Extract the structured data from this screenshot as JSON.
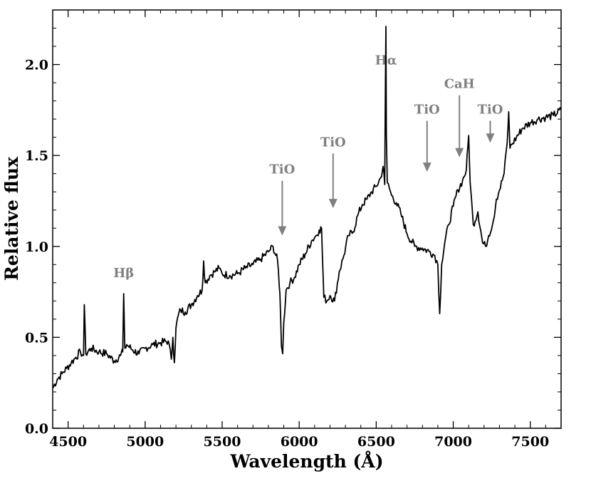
{
  "chart_data": {
    "type": "line",
    "xlabel": "Wavelength (Å)",
    "ylabel": "Relative flux",
    "xlim": [
      4400,
      7700
    ],
    "ylim": [
      0.0,
      2.3
    ],
    "xticks": [
      4500,
      5000,
      5500,
      6000,
      6500,
      7000,
      7500
    ],
    "xtick_labels": [
      "4500",
      "5000",
      "5500",
      "6000",
      "6500",
      "7000",
      "7500"
    ],
    "yticks": [
      0.0,
      0.5,
      1.0,
      1.5,
      2.0
    ],
    "ytick_labels": [
      "0.0",
      "0.5",
      "1.0",
      "1.5",
      "2.0"
    ],
    "grid": false,
    "annotation_color": "#808080",
    "line_color": "#000000",
    "annotations": [
      {
        "label": "Hβ",
        "x": 4861,
        "y": 0.83,
        "arrow": false
      },
      {
        "label": "TiO",
        "x": 5890,
        "y": 1.4,
        "arrow": true,
        "y_tip": 1.06
      },
      {
        "label": "TiO",
        "x": 6220,
        "y": 1.55,
        "arrow": true,
        "y_tip": 1.21
      },
      {
        "label": "Hα",
        "x": 6563,
        "y": 2.0,
        "arrow": false
      },
      {
        "label": "TiO",
        "x": 6830,
        "y": 1.73,
        "arrow": true,
        "y_tip": 1.41
      },
      {
        "label": "CaH",
        "x": 7040,
        "y": 1.87,
        "arrow": true,
        "y_tip": 1.49
      },
      {
        "label": "TiO",
        "x": 7240,
        "y": 1.73,
        "arrow": true,
        "y_tip": 1.57
      }
    ],
    "series": [
      {
        "x": [
          4400,
          4430,
          4460,
          4490,
          4520,
          4550,
          4580,
          4600,
          4605,
          4615,
          4650,
          4700,
          4750,
          4800,
          4840,
          4855,
          4861,
          4868,
          4880,
          4920,
          4960,
          5000,
          5050,
          5100,
          5150,
          5170,
          5180,
          5190,
          5200,
          5215,
          5230,
          5260,
          5300,
          5340,
          5370,
          5380,
          5390,
          5420,
          5450,
          5480,
          5500,
          5550,
          5600,
          5650,
          5700,
          5750,
          5800,
          5830,
          5860,
          5875,
          5885,
          5893,
          5900,
          5915,
          5940,
          5970,
          6000,
          6040,
          6080,
          6110,
          6130,
          6145,
          6160,
          6180,
          6200,
          6230,
          6260,
          6290,
          6320,
          6350,
          6380,
          6410,
          6440,
          6470,
          6500,
          6530,
          6545,
          6555,
          6560,
          6563,
          6566,
          6572,
          6585,
          6600,
          6630,
          6660,
          6700,
          6750,
          6800,
          6850,
          6880,
          6900,
          6912,
          6925,
          6945,
          6970,
          7000,
          7030,
          7060,
          7085,
          7100,
          7110,
          7130,
          7160,
          7190,
          7210,
          7230,
          7260,
          7280,
          7300,
          7330,
          7350,
          7360,
          7368,
          7380,
          7410,
          7450,
          7500,
          7550,
          7600,
          7650,
          7700
        ],
        "y": [
          0.22,
          0.27,
          0.3,
          0.33,
          0.36,
          0.39,
          0.42,
          0.4,
          0.68,
          0.41,
          0.44,
          0.42,
          0.41,
          0.37,
          0.4,
          0.42,
          0.74,
          0.44,
          0.46,
          0.43,
          0.41,
          0.44,
          0.46,
          0.47,
          0.48,
          0.38,
          0.5,
          0.36,
          0.55,
          0.62,
          0.65,
          0.64,
          0.68,
          0.73,
          0.76,
          0.92,
          0.8,
          0.84,
          0.86,
          0.88,
          0.85,
          0.84,
          0.85,
          0.88,
          0.9,
          0.93,
          0.97,
          1.0,
          0.92,
          0.74,
          0.45,
          0.41,
          0.58,
          0.76,
          0.8,
          0.83,
          0.9,
          0.96,
          1.03,
          1.06,
          1.09,
          1.1,
          0.72,
          0.7,
          0.73,
          0.7,
          0.86,
          0.95,
          1.06,
          1.08,
          1.17,
          1.23,
          1.26,
          1.3,
          1.33,
          1.38,
          1.44,
          1.34,
          1.9,
          2.21,
          1.62,
          1.35,
          1.32,
          1.28,
          1.24,
          1.18,
          1.07,
          1.0,
          0.99,
          0.97,
          0.95,
          0.9,
          0.63,
          0.9,
          1.02,
          1.12,
          1.22,
          1.31,
          1.36,
          1.42,
          1.61,
          1.35,
          1.12,
          1.19,
          1.02,
          1.0,
          1.06,
          1.14,
          1.26,
          1.31,
          1.4,
          1.57,
          1.74,
          1.54,
          1.56,
          1.6,
          1.65,
          1.68,
          1.7,
          1.71,
          1.72,
          1.75
        ]
      }
    ]
  }
}
